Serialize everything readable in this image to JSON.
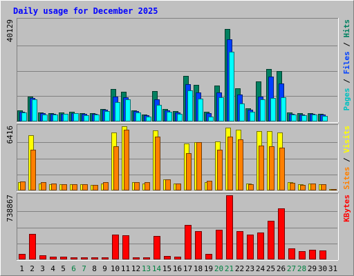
{
  "chart_data": {
    "type": "bar",
    "title": "Daily usage for December 2025",
    "categories": [
      "1",
      "2",
      "3",
      "4",
      "5",
      "6",
      "7",
      "8",
      "9",
      "10",
      "11",
      "12",
      "13",
      "14",
      "15",
      "16",
      "17",
      "18",
      "19",
      "20",
      "21",
      "22",
      "23",
      "24",
      "25",
      "26",
      "27",
      "28",
      "29",
      "30",
      "31"
    ],
    "weekend_days": [
      "6",
      "7",
      "13",
      "14",
      "20",
      "21",
      "27",
      "28"
    ],
    "colors": {
      "background": "#c0c0c0",
      "plot": "#bfbfbf",
      "title": "#0000ff",
      "weekday_label": "#000000",
      "weekend_label": "#008040",
      "hits": "#008060",
      "files": "#0040ff",
      "pages": "#00ffff",
      "visits": "#ffff00",
      "sites": "#ff8000",
      "kbytes": "#ff0000"
    },
    "panels": [
      {
        "id": "top",
        "max_label": "40129",
        "ylim": [
          0,
          40129
        ],
        "legend": [
          {
            "text": "Pages",
            "color": "#00c0c0"
          },
          {
            "text": " / ",
            "color": "#000000"
          },
          {
            "text": "Files",
            "color": "#0040ff"
          },
          {
            "text": " / ",
            "color": "#000000"
          },
          {
            "text": "Hits",
            "color": "#008060"
          }
        ],
        "series": [
          {
            "name": "Hits",
            "color": "#008060",
            "values": [
              4500,
              9800,
              3600,
              3300,
              3500,
              3700,
              3200,
              3300,
              5000,
              12800,
              11800,
              4500,
              2800,
              12000,
              5000,
              4000,
              17900,
              14600,
              3800,
              14200,
              36700,
              13100,
              5200,
              15900,
              20800,
              19800,
              3600,
              3200,
              3300,
              2900,
              400
            ]
          },
          {
            "name": "Files",
            "color": "#0040ff",
            "values": [
              3900,
              9200,
              3200,
              3000,
              3100,
              3400,
              2900,
              3000,
              4600,
              9800,
              9500,
              4000,
              2500,
              8800,
              4300,
              3600,
              14800,
              11500,
              3400,
              11500,
              32600,
              10700,
              4600,
              9800,
              17800,
              15100,
              3100,
              2800,
              3000,
              2600,
              300
            ]
          },
          {
            "name": "Pages",
            "color": "#00ffff",
            "values": [
              3500,
              8800,
              2800,
              2600,
              2900,
              3200,
              2500,
              2700,
              4100,
              7600,
              8800,
              3600,
              2000,
              6600,
              3900,
              3000,
              12300,
              9100,
              2000,
              9600,
              27600,
              7200,
              3700,
              8700,
              9400,
              9500,
              2700,
              2500,
              2700,
              2200,
              200
            ]
          }
        ]
      },
      {
        "id": "middle",
        "max_label": "6416",
        "ylim": [
          0,
          6416
        ],
        "legend": [
          {
            "text": "Sites",
            "color": "#ff8000"
          },
          {
            "text": " / ",
            "color": "#000000"
          },
          {
            "text": "Visits",
            "color": "#ffff00"
          }
        ],
        "series": [
          {
            "name": "Visits",
            "color": "#ffff00",
            "values": [
              800,
              5500,
              700,
              650,
              600,
              650,
              600,
              560,
              700,
              5800,
              6416,
              800,
              700,
              6000,
              1100,
              700,
              4700,
              4800,
              800,
              4900,
              6250,
              6100,
              700,
              5900,
              5900,
              5800,
              800,
              600,
              700,
              600,
              150
            ]
          },
          {
            "name": "Sites",
            "color": "#ff8000",
            "values": [
              900,
              4100,
              850,
              700,
              650,
              650,
              600,
              560,
              800,
              4400,
              6050,
              850,
              850,
              5400,
              1100,
              700,
              3700,
              4800,
              1000,
              4100,
              5400,
              5100,
              600,
              4500,
              4400,
              4300,
              750,
              550,
              700,
              600,
              150
            ]
          }
        ]
      },
      {
        "id": "bottom",
        "max_label": "738867",
        "ylim": [
          0,
          738867
        ],
        "legend": [
          {
            "text": "KBytes",
            "color": "#ff0000"
          }
        ],
        "series": [
          {
            "name": "KBytes",
            "color": "#ff0000",
            "values": [
              62000,
              293000,
              50000,
              32000,
              28000,
              25000,
              24000,
              22000,
              20000,
              284000,
              277000,
              26000,
              22000,
              267000,
              38000,
              28000,
              400000,
              329000,
              61000,
              338000,
              738867,
              329000,
              284000,
              309000,
              448000,
              584000,
              125000,
              95000,
              111000,
              102000,
              9000
            ]
          }
        ]
      }
    ]
  }
}
